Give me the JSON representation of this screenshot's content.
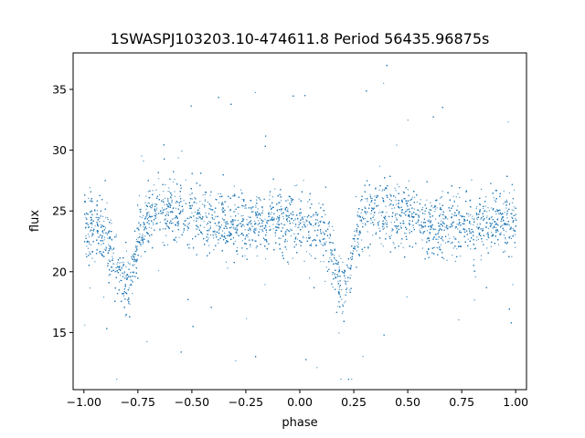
{
  "chart_data": {
    "type": "scatter",
    "title": "1SWASPJ103203.10-474611.8 Period 56435.96875s",
    "xlabel": "phase",
    "ylabel": "flux",
    "xlim": [
      -1.05,
      1.05
    ],
    "ylim": [
      10.3,
      38.0
    ],
    "x_ticks": [
      -1.0,
      -0.75,
      -0.5,
      -0.25,
      0.0,
      0.25,
      0.5,
      0.75,
      1.0
    ],
    "x_tick_labels": [
      "−1.00",
      "−0.75",
      "−0.50",
      "−0.25",
      "0.00",
      "0.25",
      "0.50",
      "0.75",
      "1.00"
    ],
    "y_ticks": [
      15,
      20,
      25,
      30,
      35
    ],
    "y_tick_labels": [
      "15",
      "20",
      "25",
      "30",
      "35"
    ],
    "grid": false,
    "legend": "none",
    "marker_color": "#1f77b4",
    "series": [
      {
        "description": "phase-folded light curve (sampled profile: median flux vs phase)",
        "x": [
          -1.0,
          -0.95,
          -0.9,
          -0.85,
          -0.82,
          -0.8,
          -0.78,
          -0.75,
          -0.7,
          -0.6,
          -0.5,
          -0.4,
          -0.3,
          -0.2,
          -0.1,
          0.0,
          0.05,
          0.1,
          0.15,
          0.18,
          0.2,
          0.22,
          0.25,
          0.3,
          0.4,
          0.5,
          0.6,
          0.7,
          0.8,
          0.9,
          1.0
        ],
        "y": [
          24.0,
          23.8,
          23.0,
          20.5,
          19.0,
          18.5,
          19.5,
          22.5,
          24.8,
          25.2,
          24.8,
          24.0,
          23.8,
          24.0,
          24.3,
          24.0,
          23.8,
          23.5,
          21.0,
          19.0,
          18.5,
          20.0,
          22.5,
          25.0,
          25.2,
          24.8,
          24.0,
          23.8,
          24.0,
          24.3,
          24.0
        ]
      }
    ]
  }
}
